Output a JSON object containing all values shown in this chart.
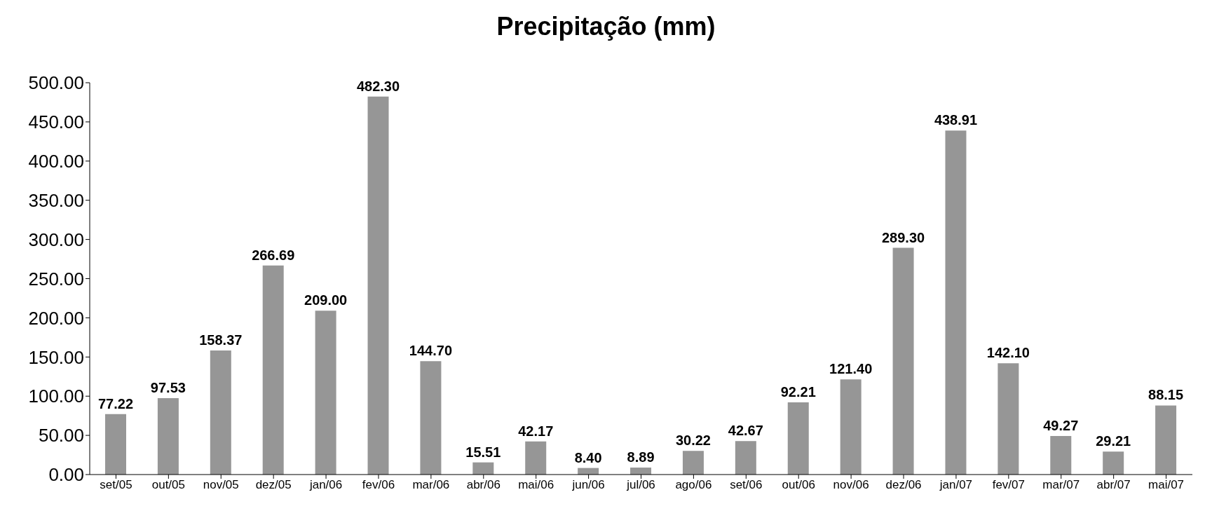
{
  "chart_data": {
    "type": "bar",
    "title": "Precipitação (mm)",
    "categories": [
      "set/05",
      "out/05",
      "nov/05",
      "dez/05",
      "jan/06",
      "fev/06",
      "mar/06",
      "abr/06",
      "mai/06",
      "jun/06",
      "jul/06",
      "ago/06",
      "set/06",
      "out/06",
      "nov/06",
      "dez/06",
      "jan/07",
      "fev/07",
      "mar/07",
      "abr/07",
      "mai/07"
    ],
    "values": [
      77.22,
      97.53,
      158.37,
      266.69,
      209.0,
      482.3,
      144.7,
      15.51,
      42.17,
      8.4,
      8.89,
      30.22,
      42.67,
      92.21,
      121.4,
      289.3,
      438.91,
      142.1,
      49.27,
      29.21,
      88.15
    ],
    "value_labels": [
      "77.22",
      "97.53",
      "158.37",
      "266.69",
      "209.00",
      "482.30",
      "144.70",
      "15.51",
      "42.17",
      "8.40",
      "8.89",
      "30.22",
      "42.67",
      "92.21",
      "121.40",
      "289.30",
      "438.91",
      "142.10",
      "49.27",
      "29.21",
      "88.15"
    ],
    "color": "#969696",
    "ylim": [
      0,
      500
    ],
    "yticks": [
      {
        "value": 0,
        "label": "0.00"
      },
      {
        "value": 50,
        "label": "50.00"
      },
      {
        "value": 100,
        "label": "100.00"
      },
      {
        "value": 150,
        "label": "150.00"
      },
      {
        "value": 200,
        "label": "200.00"
      },
      {
        "value": 250,
        "label": "250.00"
      },
      {
        "value": 300,
        "label": "300.00"
      },
      {
        "value": 350,
        "label": "350.00"
      },
      {
        "value": 400,
        "label": "400.00"
      },
      {
        "value": 450,
        "label": "450.00"
      },
      {
        "value": 500,
        "label": "500.00"
      }
    ],
    "grid": false,
    "legend": false
  }
}
